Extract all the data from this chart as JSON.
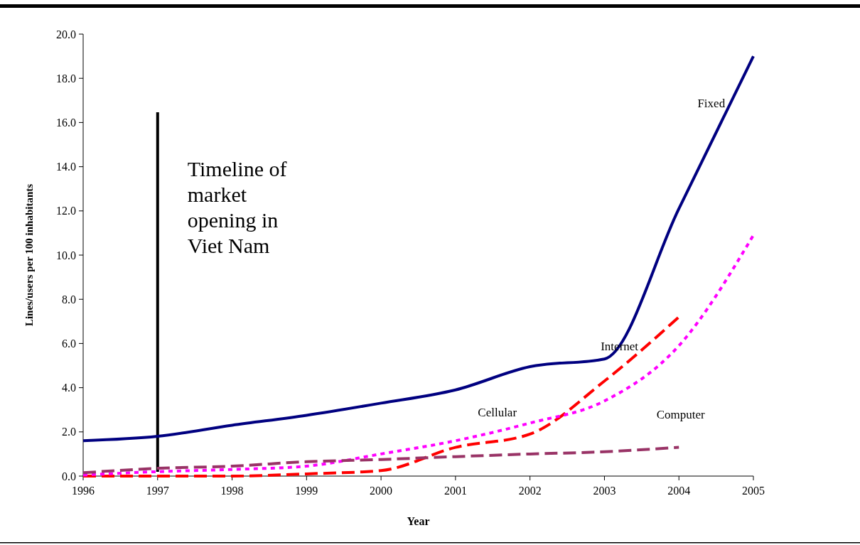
{
  "chart_data": {
    "type": "line",
    "xlabel": "Year",
    "ylabel": "Lines/users per 100 inhabitants",
    "x": [
      1996,
      1997,
      1998,
      1999,
      2000,
      2001,
      2002,
      2003,
      2004,
      2005
    ],
    "xlim": [
      1996,
      2005
    ],
    "xticks": [
      1996,
      1997,
      1998,
      1999,
      2000,
      2001,
      2002,
      2003,
      2004,
      2005
    ],
    "ylim": [
      0,
      20
    ],
    "yticks": [
      {
        "value": 0,
        "label": "0.0"
      },
      {
        "value": 2,
        "label": "2.0"
      },
      {
        "value": 4,
        "label": "4.0"
      },
      {
        "value": 6,
        "label": "6.0"
      },
      {
        "value": 8,
        "label": "8.0"
      },
      {
        "value": 10,
        "label": "10.0"
      },
      {
        "value": 12,
        "label": "12.0"
      },
      {
        "value": 14,
        "label": "14.0"
      },
      {
        "value": 16,
        "label": "16.0"
      },
      {
        "value": 18,
        "label": "18.0"
      },
      {
        "value": 20,
        "label": "20.0"
      }
    ],
    "grid": false,
    "marker": "none",
    "series": [
      {
        "name": "Fixed",
        "color": "#000080",
        "line_style": "solid",
        "values": [
          1.6,
          1.8,
          2.3,
          2.75,
          3.3,
          3.9,
          4.95,
          5.3,
          12.1,
          19.0
        ]
      },
      {
        "name": "Internet",
        "color": "#ff0000",
        "line_style": "dashed",
        "values": [
          0.0,
          0.0,
          0.0,
          0.1,
          0.25,
          1.3,
          1.9,
          4.3,
          7.2,
          null
        ]
      },
      {
        "name": "Cellular",
        "color": "#ff00ff",
        "line_style": "dotted",
        "values": [
          0.05,
          0.2,
          0.3,
          0.45,
          1.0,
          1.6,
          2.4,
          3.4,
          5.9,
          10.9
        ]
      },
      {
        "name": "Computer",
        "color": "#993366",
        "line_style": "dashed",
        "values": [
          0.15,
          0.35,
          0.45,
          0.65,
          0.75,
          0.88,
          1.0,
          1.1,
          1.3,
          null
        ]
      }
    ],
    "ref_lines": [
      {
        "axis": "x",
        "value": 1997,
        "label": "Timeline of market opening in Viet Nam",
        "color": "#000000",
        "line_style": "solid"
      }
    ]
  }
}
